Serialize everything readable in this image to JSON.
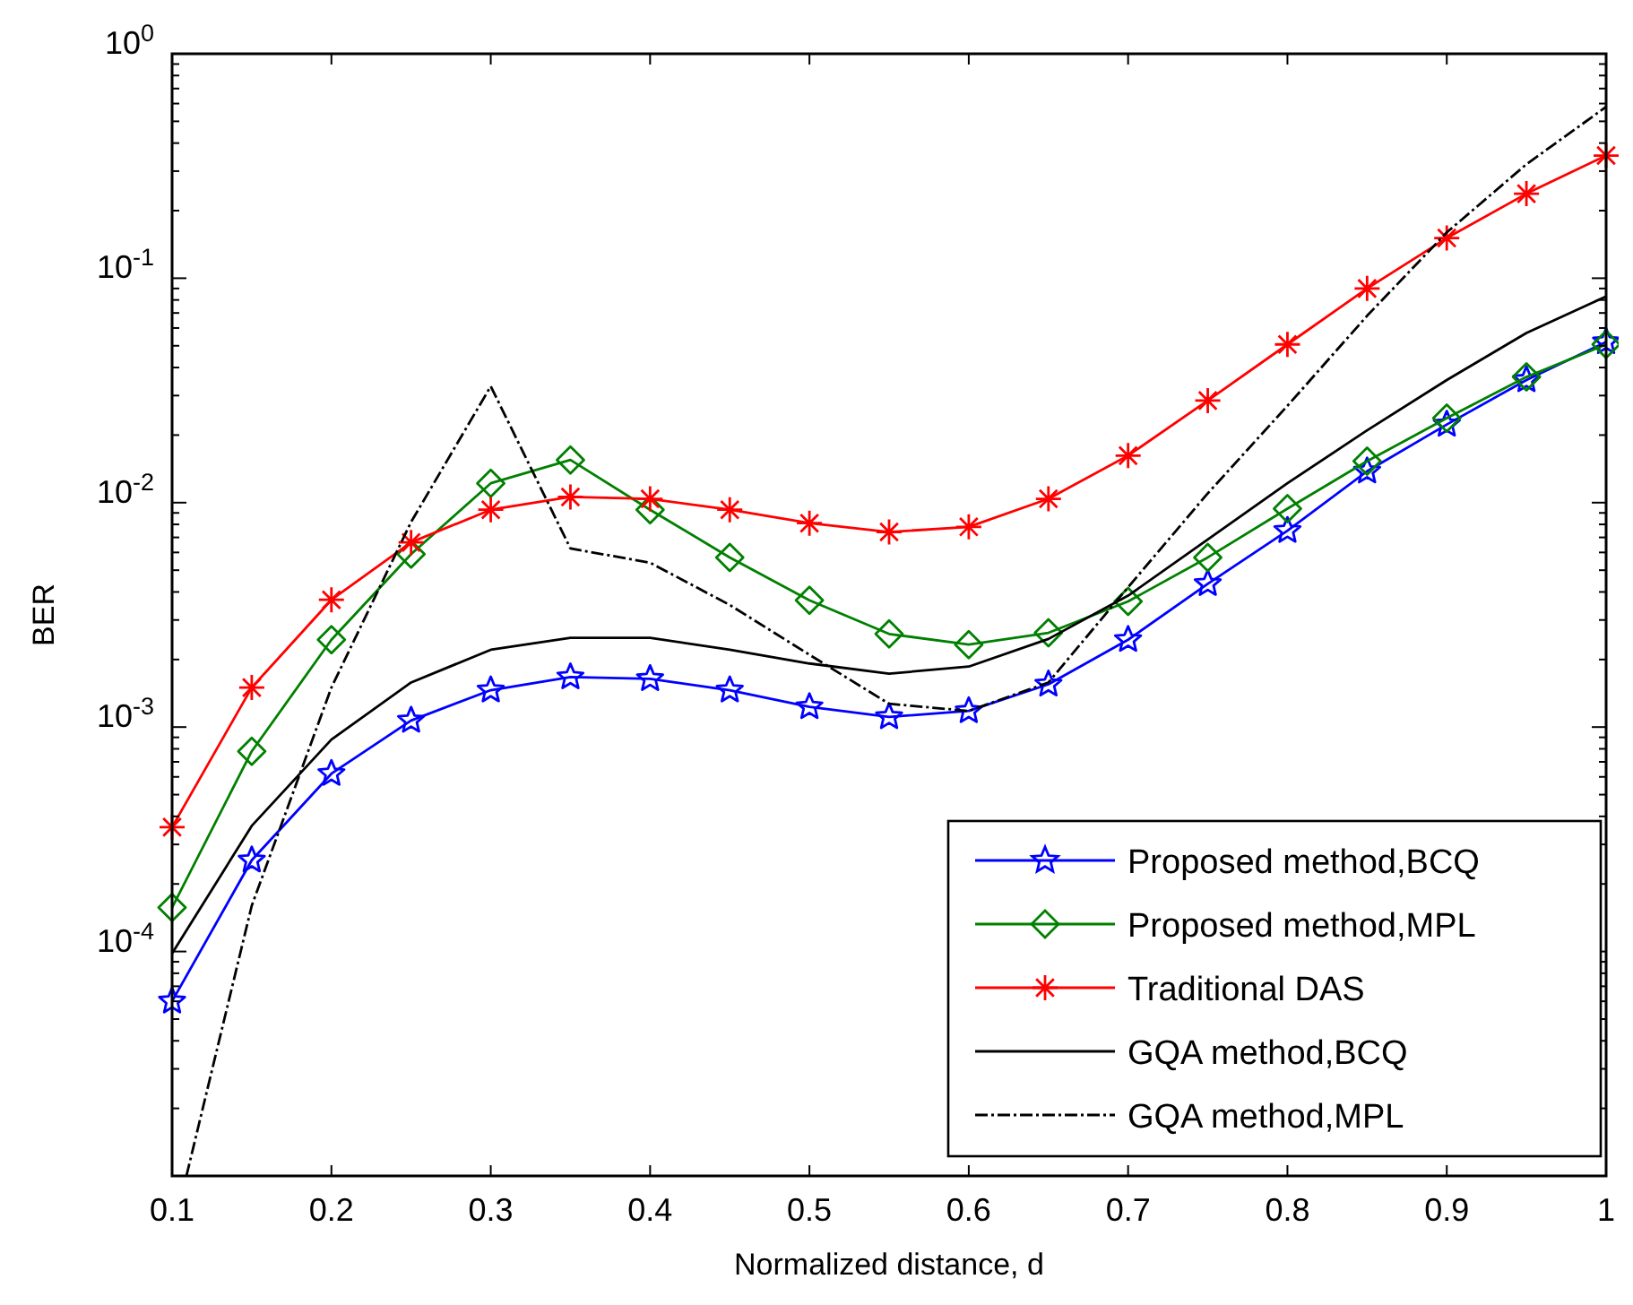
{
  "chart_data": {
    "type": "line",
    "xlabel": "Normalized distance, d",
    "ylabel": "BER",
    "log": "y",
    "x": [
      0.1,
      0.15,
      0.2,
      0.25,
      0.3,
      0.35,
      0.4,
      0.45,
      0.5,
      0.55,
      0.6,
      0.65,
      0.7,
      0.75,
      0.8,
      0.85,
      0.9,
      0.95,
      1
    ],
    "xlim": [
      0.1,
      1
    ],
    "xticks": [
      0.1,
      0.2,
      0.3,
      0.4,
      0.5,
      0.6,
      0.7,
      0.8,
      0.9,
      1
    ],
    "ylim": [
      1e-05,
      1
    ],
    "yticks": [
      {
        "value": 1e-05,
        "label": null
      },
      {
        "value": 0.0001,
        "label": "10$^{-4}$"
      },
      {
        "value": 0.001,
        "label": "10$^{-3}$"
      },
      {
        "value": 0.01,
        "label": "10$^{-2}$"
      },
      {
        "value": 0.1,
        "label": "10$^{-1}$"
      },
      {
        "value": 1,
        "label": "10$^{0}$"
      }
    ],
    "grid": false,
    "legend": "bottom right",
    "series": [
      {
        "name": "Proposed method,BCQ",
        "color": "#0000ff",
        "marker": "star",
        "line_style": "solid",
        "values": [
          6e-05,
          0.000255,
          0.00062,
          0.00107,
          0.00146,
          0.00167,
          0.00164,
          0.00146,
          0.00123,
          0.00111,
          0.00118,
          0.00155,
          0.00245,
          0.00435,
          0.0075,
          0.0138,
          0.0223,
          0.0352,
          0.052
        ]
      },
      {
        "name": "Proposed method,MPL",
        "color": "#008000",
        "marker": "diamond",
        "line_style": "solid",
        "values": [
          0.000157,
          0.00078,
          0.00245,
          0.0059,
          0.0122,
          0.0155,
          0.0093,
          0.0057,
          0.00367,
          0.0026,
          0.00233,
          0.00263,
          0.00363,
          0.0057,
          0.0094,
          0.0153,
          0.0238,
          0.0363,
          0.0507
        ]
      },
      {
        "name": "Traditional DAS",
        "color": "#ff0000",
        "marker": "cross",
        "line_style": "solid",
        "values": [
          0.000358,
          0.0015,
          0.00369,
          0.00665,
          0.0093,
          0.0106,
          0.0104,
          0.0093,
          0.0081,
          0.0074,
          0.0078,
          0.0104,
          0.0162,
          0.0285,
          0.0507,
          0.09,
          0.151,
          0.238,
          0.352
        ]
      },
      {
        "name": "GQA method,BCQ",
        "color": "#000000",
        "marker": "none",
        "line_style": "solid",
        "values": [
          9.8e-05,
          0.000363,
          0.00088,
          0.00158,
          0.00221,
          0.0025,
          0.0025,
          0.00221,
          0.00192,
          0.00173,
          0.00186,
          0.00247,
          0.00385,
          0.00685,
          0.0122,
          0.021,
          0.0352,
          0.057,
          0.083
        ]
      },
      {
        "name": "GQA method,MPL",
        "color": "#000000",
        "marker": "none",
        "line_style": "dashed",
        "x": [
          0.109,
          0.15,
          0.2,
          0.25,
          0.3,
          0.35,
          0.4,
          0.45,
          0.5,
          0.55,
          0.6,
          0.65,
          0.7,
          0.75,
          0.8,
          0.85,
          0.9,
          0.95,
          1
        ],
        "values": [
          1e-05,
          0.00016,
          0.0015,
          0.0082,
          0.033,
          0.00625,
          0.0054,
          0.0035,
          0.0021,
          0.00127,
          0.00118,
          0.00158,
          0.0042,
          0.011,
          0.027,
          0.068,
          0.16,
          0.322,
          0.58
        ]
      }
    ]
  }
}
